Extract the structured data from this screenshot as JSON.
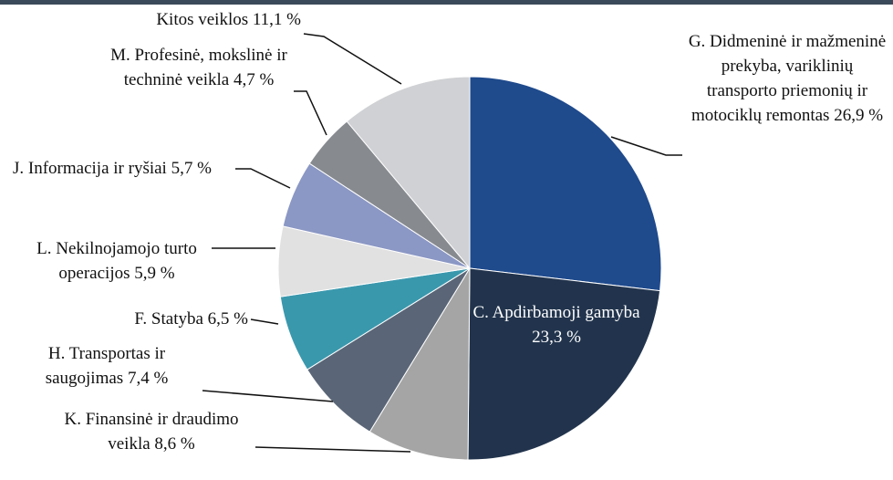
{
  "chart_data": {
    "type": "pie",
    "categories": [
      "G. Didmeninė ir mažmeninė prekyba, variklinių transporto priemonių ir motociklų remontas",
      "C. Apdirbamoji gamyba",
      "K. Finansinė ir draudimo veikla",
      "H. Transportas ir saugojimas",
      "F. Statyba",
      "L. Nekilnojamojo turto operacijos",
      "J. Informacija ir ryšiai",
      "M. Profesinė, mokslinė ir techninė veikla",
      "Kitos veiklos"
    ],
    "values": [
      26.9,
      23.3,
      8.6,
      7.4,
      6.5,
      5.9,
      5.7,
      4.7,
      11.1
    ],
    "value_labels": [
      "26,9 %",
      "23,3 %",
      "8,6 %",
      "7,4 %",
      "6,5 %",
      "5,9 %",
      "5,7 %",
      "4,7 %",
      "11,1 %"
    ],
    "colors": [
      "#1f4a8c",
      "#22344d",
      "#a5a5a5",
      "#5a6677",
      "#3a98ad",
      "#e1e1e1",
      "#8b97c4",
      "#878b90",
      "#d0d1d4"
    ]
  }
}
